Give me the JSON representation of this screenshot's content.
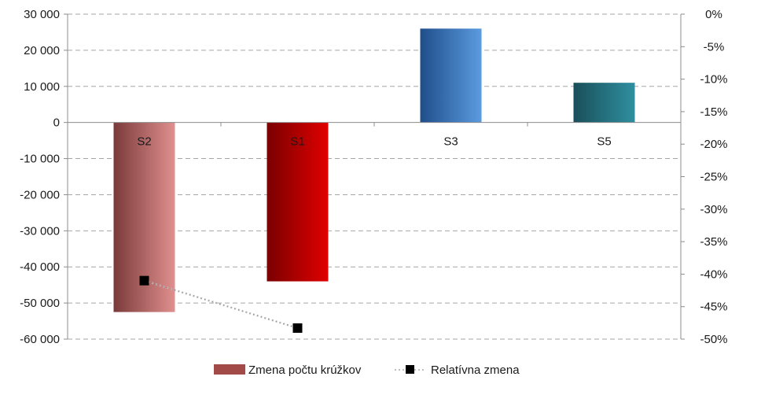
{
  "chart_data": {
    "type": "bar",
    "categories": [
      "S2",
      "S1",
      "S3",
      "S5"
    ],
    "series": [
      {
        "name": "Zmena počtu krúžkov",
        "type": "bar",
        "axis": "left",
        "values": [
          -52500,
          -44000,
          26000,
          11000
        ]
      },
      {
        "name": "Relatívna zmena",
        "type": "line",
        "axis": "right",
        "values": [
          -41,
          -48.3,
          null,
          null
        ]
      }
    ],
    "y_left": {
      "ylim": [
        -60000,
        30000
      ],
      "ticks": [
        30000,
        20000,
        10000,
        0,
        -10000,
        -20000,
        -30000,
        -40000,
        -50000,
        -60000
      ],
      "tick_labels": [
        "30 000",
        "20 000",
        "10 000",
        "0",
        "-10 000",
        "-20 000",
        "-30 000",
        "-40 000",
        "-50 000",
        "-60 000"
      ]
    },
    "y_right": {
      "ylim": [
        -50,
        0
      ],
      "ticks": [
        0,
        -5,
        -10,
        -15,
        -20,
        -25,
        -30,
        -35,
        -40,
        -45,
        -50
      ],
      "tick_labels": [
        "0%",
        "-5%",
        "-10%",
        "-15%",
        "-20%",
        "-25%",
        "-30%",
        "-35%",
        "-40%",
        "-45%",
        "-50%"
      ]
    },
    "bar_colors": [
      [
        "#7a3a3a",
        "#e0908e"
      ],
      [
        "#7a0000",
        "#e00000"
      ],
      [
        "#1f4e8a",
        "#5b9be0"
      ],
      [
        "#1a4f5a",
        "#2f8fa0"
      ]
    ],
    "grid": true,
    "legend_position": "bottom"
  }
}
